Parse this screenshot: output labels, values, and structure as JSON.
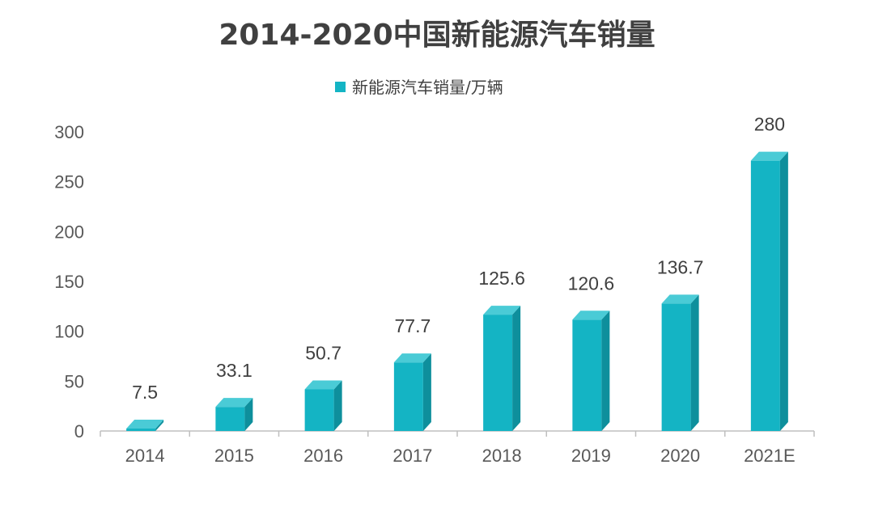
{
  "chart_data": {
    "type": "bar",
    "title": "2014-2020中国新能源汽车销量",
    "legend": {
      "position": "top",
      "entries": [
        "新能源汽车销量/万辆"
      ]
    },
    "categories": [
      "2014",
      "2015",
      "2016",
      "2017",
      "2018",
      "2019",
      "2020",
      "2021E"
    ],
    "series": [
      {
        "name": "新能源汽车销量/万辆",
        "values": [
          7.5,
          33.1,
          50.7,
          77.7,
          125.6,
          120.6,
          136.7,
          280
        ],
        "data_labels": [
          "7.5",
          "33.1",
          "50.7",
          "77.7",
          "125.6",
          "120.6",
          "136.7",
          "280"
        ]
      }
    ],
    "y_ticks": [
      "0",
      "50",
      "100",
      "150",
      "200",
      "250",
      "300"
    ],
    "ylim": [
      0,
      300
    ],
    "grid": false,
    "style": "3d-column",
    "colors": {
      "bar_front": "#14B4C4",
      "bar_side": "#0E8F9C",
      "bar_top": "#4ACBD6",
      "axis": "#BFBFBF"
    }
  }
}
